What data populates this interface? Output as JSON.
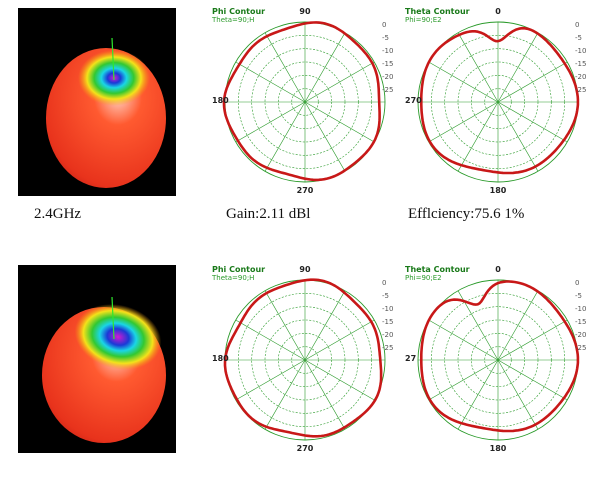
{
  "colors": {
    "grid": "#2a9a2a",
    "trace": "#c81818",
    "sphere_red": "#e8331c",
    "sphere_orange": "#f59a12",
    "sphere_yellow": "#f4e21a",
    "sphere_green": "#32c832",
    "sphere_cyan": "#1ad6e6",
    "sphere_blue": "#1a3ad6",
    "sphere_magenta": "#d21ad2"
  },
  "captions": {
    "frequency": "2.4GHz",
    "gain": "Gain:2.11 dBl",
    "efficiency": "Efflciency:75.6 1%"
  },
  "chart_data": [
    {
      "type": "polar-line",
      "title": "Phi Contour",
      "subtitle": "Theta=90;H",
      "angle_labels": {
        "top": "90",
        "left": "180",
        "bottom": "270"
      },
      "radial_ticks": [
        "0",
        "-5",
        "-10",
        "-15",
        "-20",
        "-25"
      ],
      "pattern": "near-omnidirectional"
    },
    {
      "type": "polar-line",
      "title": "Theta Contour",
      "subtitle": "Phi=90;E2",
      "angle_labels": {
        "top": "0",
        "left": "270",
        "bottom": "180"
      },
      "radial_ticks": [
        "0",
        "-5",
        "-10",
        "-15",
        "-20",
        "-25"
      ],
      "pattern": "heart-shaped, null near 0"
    },
    {
      "type": "polar-line",
      "title": "Phi Contour",
      "subtitle": "Theta=90;H",
      "angle_labels": {
        "top": "90",
        "left": "180",
        "bottom": "270"
      },
      "radial_ticks": [
        "0",
        "-5",
        "-10",
        "-15",
        "-20",
        "-25"
      ],
      "pattern": "near-omnidirectional"
    },
    {
      "type": "polar-line",
      "title": "Theta Contour",
      "subtitle": "Phi=90;E2",
      "angle_labels": {
        "top": "0",
        "left": "27",
        "bottom": "180"
      },
      "radial_ticks": [
        "0",
        "-5",
        "-10",
        "-15",
        "-20",
        "-25"
      ],
      "pattern": "heart-shaped, null near 30"
    }
  ]
}
